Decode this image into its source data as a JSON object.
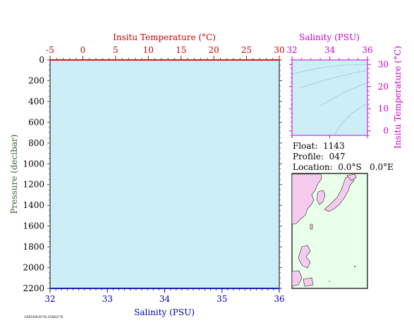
{
  "colors": {
    "plot_bg": "#cceef7",
    "temperature": "#cc0000",
    "salinity": "#0000aa",
    "pressure": "#336633",
    "ts_axis": "#cc00cc",
    "land": "#f5ccf0",
    "ocean": "#eaffea"
  },
  "chart_data": [
    {
      "type": "line",
      "title": "",
      "ylabel": "Pressure (decibar)",
      "ylim": [
        2200,
        0
      ],
      "yticks": [
        0,
        200,
        400,
        600,
        800,
        1000,
        1200,
        1400,
        1600,
        1800,
        2000,
        2200
      ],
      "grid": false,
      "top_axis": {
        "label": "Insitu Temperature (°C)",
        "range": [
          -5,
          30
        ],
        "ticks": [
          -5,
          0,
          5,
          10,
          15,
          20,
          25,
          30
        ]
      },
      "bottom_axis": {
        "label": "Salinity (PSU)",
        "range": [
          32,
          36
        ],
        "ticks": [
          32,
          33,
          34,
          35,
          36
        ]
      },
      "series": [
        {
          "axis": "temperature",
          "values": [
            [
              30,
              0
            ],
            [
              -5,
              0
            ]
          ]
        },
        {
          "axis": "salinity",
          "values": [
            [
              32,
              2200
            ],
            [
              36,
              2200
            ]
          ]
        }
      ]
    },
    {
      "type": "line",
      "title": "",
      "xlabel": "Salinity (PSU)",
      "ylabel": "Insitu Temperature (°C)",
      "xlim": [
        32,
        36
      ],
      "ylim": [
        -2,
        32
      ],
      "xticks": [
        32,
        34,
        36
      ],
      "yticks": [
        0,
        10,
        20,
        30
      ],
      "series": []
    }
  ],
  "info": {
    "float": "Float:  1143",
    "profile": "Profile:  047",
    "location": "Location:  0.0°S   0.0°E"
  },
  "footnote": "1085042076.0588276"
}
